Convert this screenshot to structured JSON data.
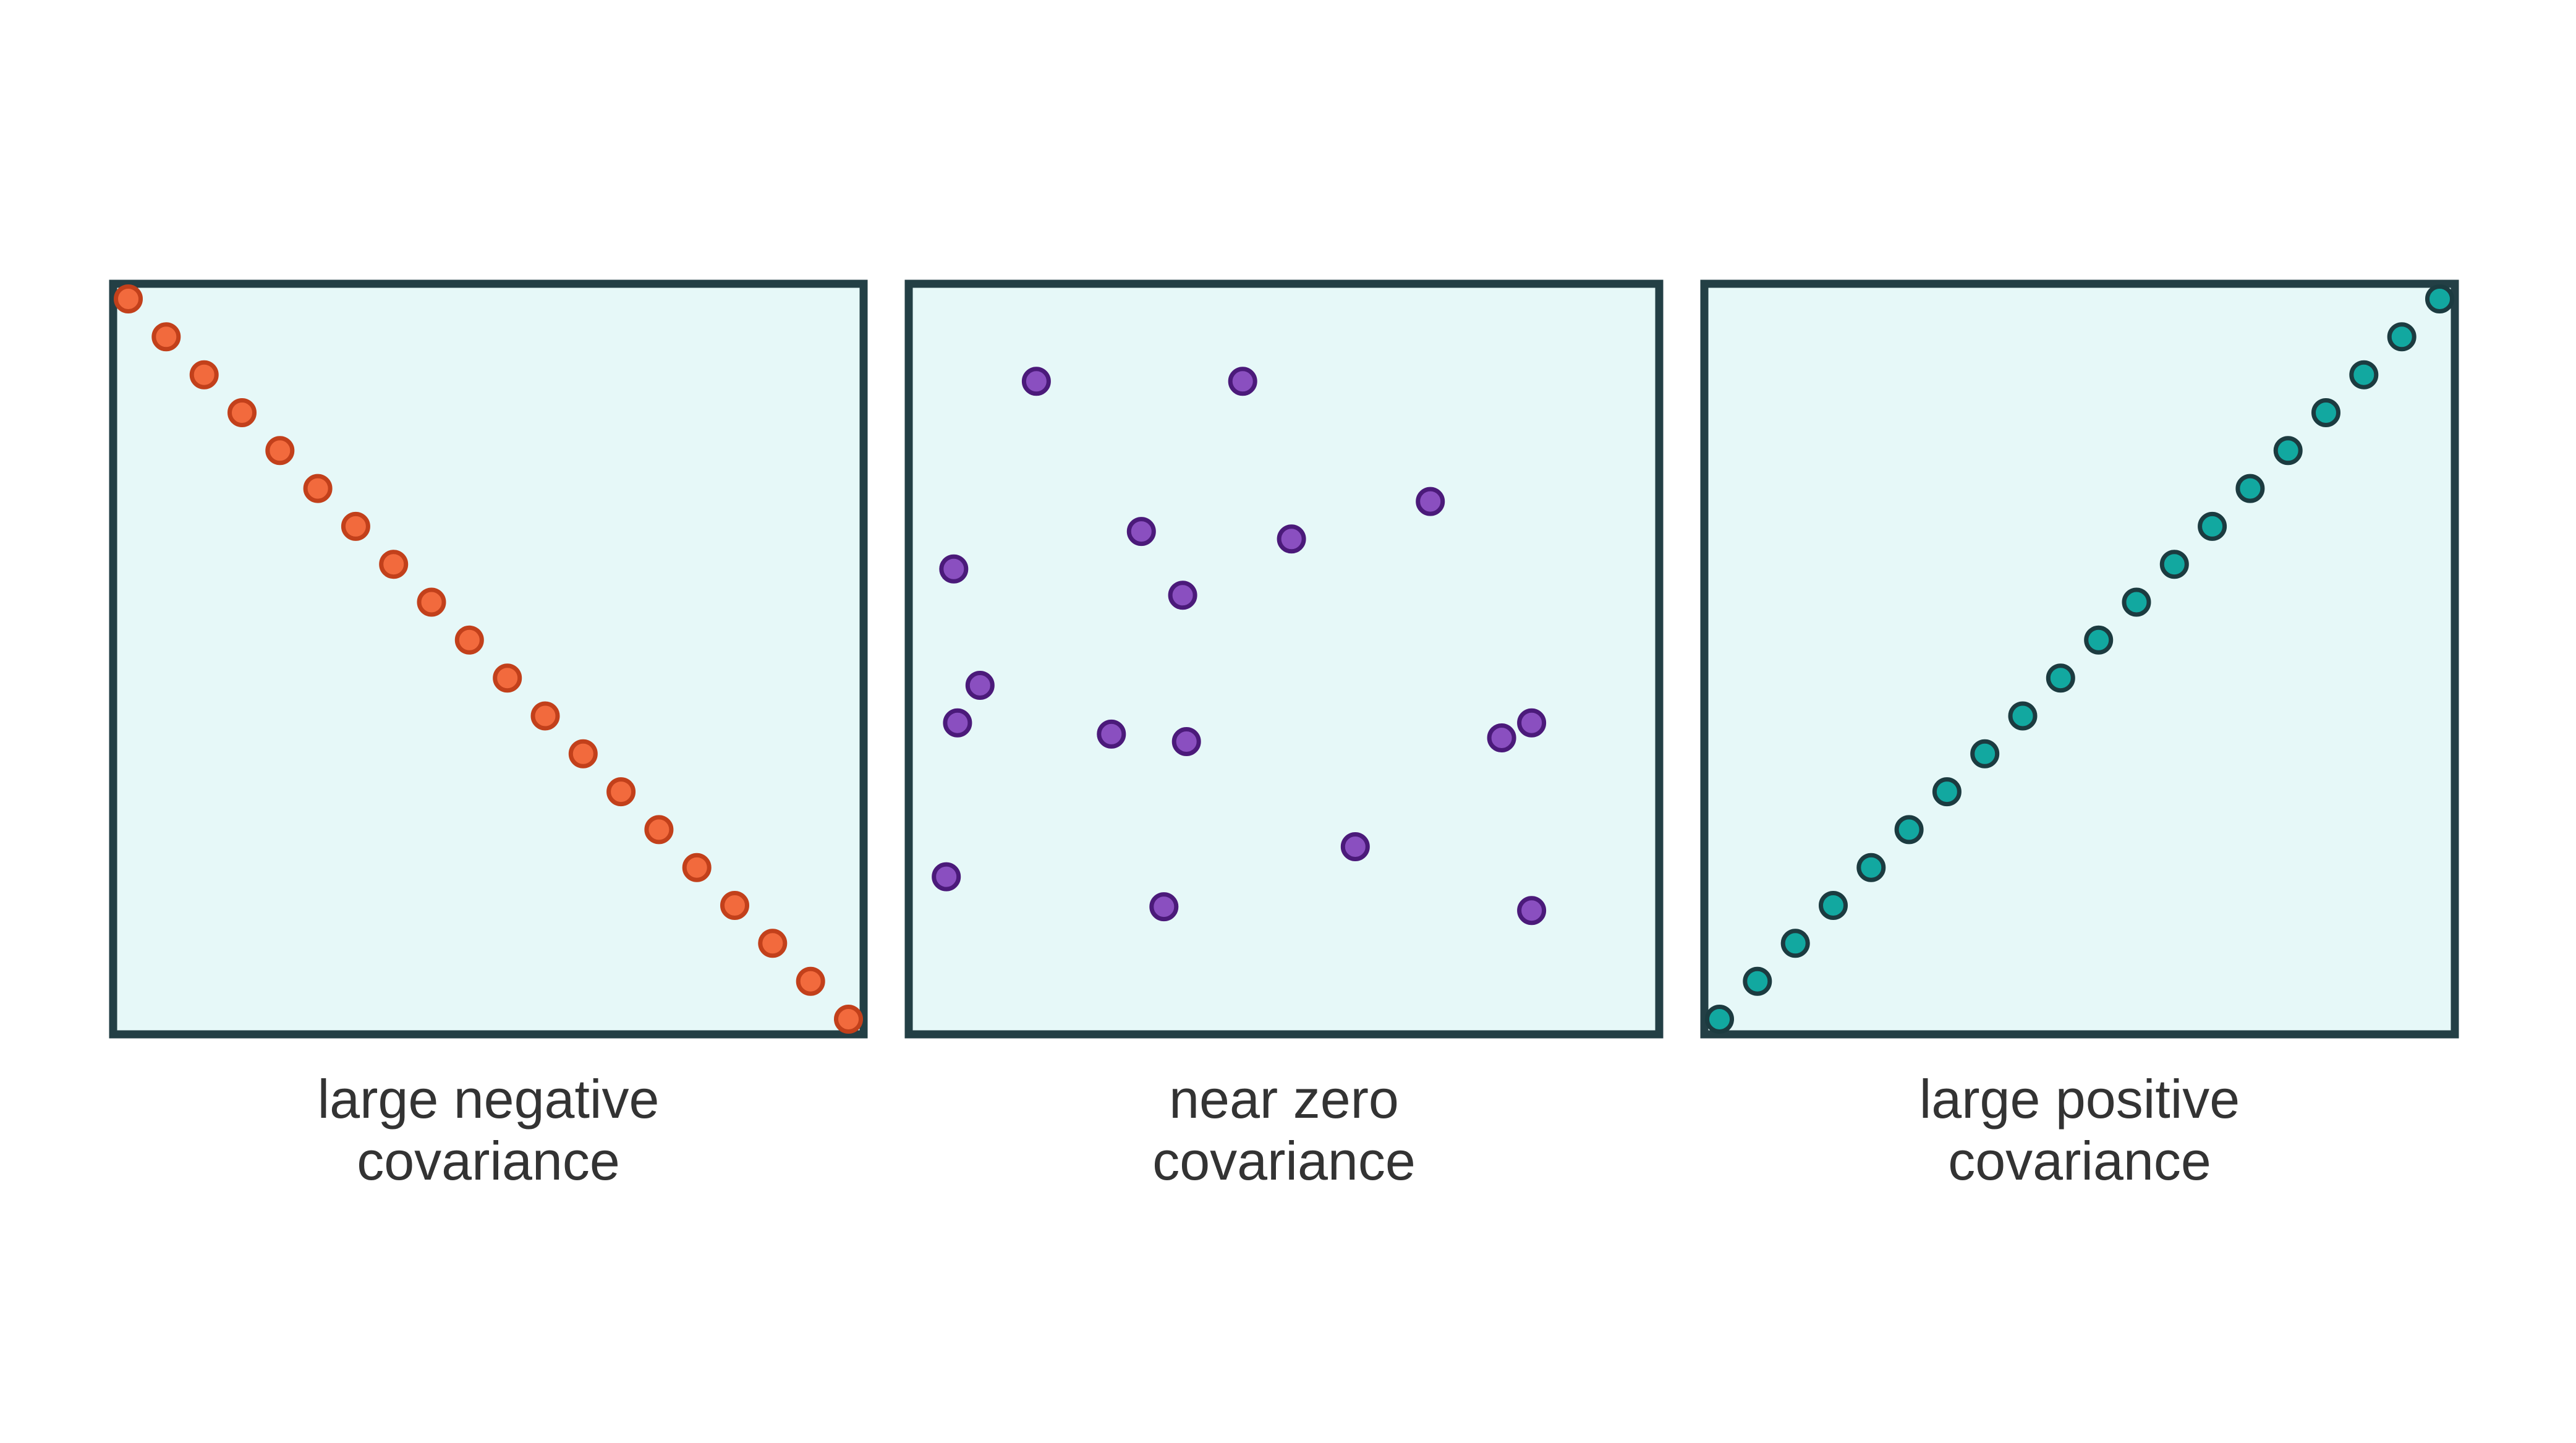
{
  "chart_data": [
    {
      "type": "scatter",
      "label_lines": [
        "large negative",
        "covariance"
      ],
      "colors": {
        "fill": "#f26a3d",
        "stroke": "#c2401b"
      },
      "x": [
        0,
        1,
        2,
        3,
        4,
        5,
        6,
        7,
        8,
        9,
        10,
        11,
        12,
        13,
        14,
        15,
        16,
        17,
        18,
        19
      ],
      "y": [
        19,
        18,
        17,
        16,
        15,
        14,
        13,
        12,
        11,
        10,
        9,
        8,
        7,
        6,
        5,
        4,
        3,
        2,
        1,
        0
      ],
      "xlim": [
        -0.4,
        19.4
      ],
      "ylim": [
        -0.4,
        19.4
      ]
    },
    {
      "type": "scatter",
      "label_lines": [
        "near zero",
        "covariance"
      ],
      "colors": {
        "fill": "#8a4fc0",
        "stroke": "#4b1a7a"
      },
      "x": [
        3.4,
        8.9,
        6.2,
        13.9,
        10.2,
        1.2,
        7.3,
        1.9,
        1.3,
        5.4,
        7.4,
        11.9,
        1.0,
        6.8,
        15.8,
        16.6,
        16.6
      ],
      "y": [
        17.4,
        17.4,
        13.4,
        14.2,
        13.2,
        12.4,
        11.7,
        9.3,
        8.3,
        8.0,
        7.8,
        5.0,
        4.2,
        3.4,
        7.9,
        8.3,
        3.3
      ],
      "xlim": [
        0,
        20
      ],
      "ylim": [
        0,
        20
      ]
    },
    {
      "type": "scatter",
      "label_lines": [
        "large positive",
        "covariance"
      ],
      "colors": {
        "fill": "#12a8a0",
        "stroke": "#1c3b40"
      },
      "x": [
        0,
        1,
        2,
        3,
        4,
        5,
        6,
        7,
        8,
        9,
        10,
        11,
        12,
        13,
        14,
        15,
        16,
        17,
        18,
        19
      ],
      "y": [
        0,
        1,
        2,
        3,
        4,
        5,
        6,
        7,
        8,
        9,
        10,
        11,
        12,
        13,
        14,
        15,
        16,
        17,
        18,
        19
      ],
      "xlim": [
        -0.4,
        19.4
      ],
      "ylim": [
        -0.4,
        19.4
      ]
    }
  ]
}
